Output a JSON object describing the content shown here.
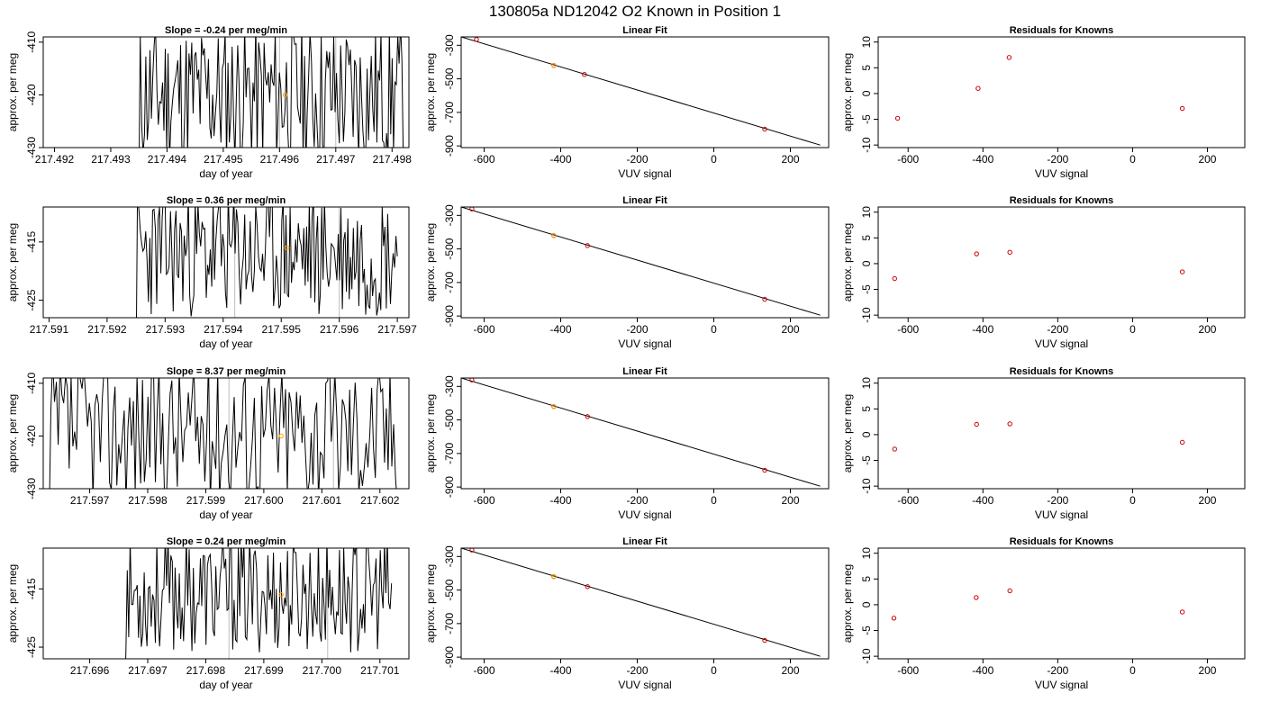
{
  "title": "130805a     ND12042   O2 Known in Position  1",
  "colors": {
    "trace": "#000000",
    "known_marker": "#ffa500",
    "points": "#cc0000",
    "fit_line": "#000000",
    "vline": "#bebebe"
  },
  "chart_data": [
    {
      "type": "line",
      "row": 0,
      "col": 0,
      "title": "Slope =  -0.24  per meg/min",
      "xlabel": "day of year",
      "ylabel": "approx. per meg",
      "xlim": [
        217.4918,
        217.4983
      ],
      "ylim": [
        -430,
        -409
      ],
      "xticks": [
        "217.492",
        "217.493",
        "217.494",
        "217.495",
        "217.496",
        "217.497",
        "217.498"
      ],
      "yticks": [
        "-410",
        "-420",
        "-430"
      ],
      "series": [
        {
          "x_start": 217.4935,
          "x_end": 217.4982,
          "amplitude": 14,
          "seed": 11,
          "baseline": -420
        }
      ],
      "vlines": [
        217.496,
        217.497
      ],
      "marker": {
        "x": 217.4961,
        "y": -420
      }
    },
    {
      "type": "scatter",
      "row": 0,
      "col": 1,
      "title": "Linear Fit",
      "xlabel": "VUV signal",
      "ylabel": "approx. per meg",
      "xlim": [
        -660,
        300
      ],
      "ylim": [
        -910,
        -250
      ],
      "xticks": [
        "-600",
        "-400",
        "-200",
        "0",
        "200"
      ],
      "yticks": [
        "-300",
        "-500",
        "-700",
        "-900"
      ],
      "points": [
        {
          "x": -620,
          "y": -265
        },
        {
          "x": -418,
          "y": -420
        },
        {
          "x": -338,
          "y": -474
        },
        {
          "x": 133,
          "y": -800
        }
      ],
      "fit": {
        "x": [
          -660,
          278
        ],
        "y": [
          -250,
          -895
        ]
      },
      "marker": {
        "x": -418,
        "y": -420
      }
    },
    {
      "type": "scatter",
      "row": 0,
      "col": 2,
      "title": "Residuals for Knowns",
      "xlabel": "VUV signal",
      "ylabel": "approx. per meg",
      "xlim": [
        -680,
        300
      ],
      "ylim": [
        -10.5,
        11
      ],
      "xticks": [
        "-600",
        "-400",
        "-200",
        "0",
        "200"
      ],
      "yticks": [
        "10",
        "5",
        "0",
        "-5",
        "-10"
      ],
      "points": [
        {
          "x": -628,
          "y": -4.8
        },
        {
          "x": -413,
          "y": 1.0
        },
        {
          "x": -330,
          "y": 7.0
        },
        {
          "x": 133,
          "y": -2.9
        }
      ]
    },
    {
      "type": "line",
      "row": 1,
      "col": 0,
      "title": "Slope =  0.36  per meg/min",
      "xlabel": "day of year",
      "ylabel": "approx. per meg",
      "xlim": [
        217.5909,
        217.5972
      ],
      "ylim": [
        -428,
        -409
      ],
      "xticks": [
        "217.591",
        "217.592",
        "217.593",
        "217.594",
        "217.595",
        "217.596",
        "217.597"
      ],
      "yticks": [
        "-415",
        "-425"
      ],
      "series": [
        {
          "x_start": 217.5925,
          "x_end": 217.597,
          "amplitude": 11,
          "seed": 23,
          "baseline": -417
        }
      ],
      "vlines": [
        217.5942,
        217.596
      ],
      "marker": {
        "x": 217.5951,
        "y": -416
      }
    },
    {
      "type": "scatter",
      "row": 1,
      "col": 1,
      "title": "Linear Fit",
      "xlabel": "VUV signal",
      "ylabel": "approx. per meg",
      "xlim": [
        -660,
        300
      ],
      "ylim": [
        -910,
        -250
      ],
      "xticks": [
        "-600",
        "-400",
        "-200",
        "0",
        "200"
      ],
      "yticks": [
        "-300",
        "-500",
        "-700",
        "-900"
      ],
      "points": [
        {
          "x": -632,
          "y": -262
        },
        {
          "x": -418,
          "y": -420
        },
        {
          "x": -330,
          "y": -480
        },
        {
          "x": 133,
          "y": -800
        }
      ],
      "fit": {
        "x": [
          -660,
          278
        ],
        "y": [
          -250,
          -895
        ]
      },
      "marker": {
        "x": -418,
        "y": -420
      }
    },
    {
      "type": "scatter",
      "row": 1,
      "col": 2,
      "title": "Residuals for Knowns",
      "xlabel": "VUV signal",
      "ylabel": "approx. per meg",
      "xlim": [
        -680,
        300
      ],
      "ylim": [
        -10.5,
        11
      ],
      "xticks": [
        "-600",
        "-400",
        "-200",
        "0",
        "200"
      ],
      "yticks": [
        "10",
        "5",
        "0",
        "-5",
        "-10"
      ],
      "points": [
        {
          "x": -636,
          "y": -2.9
        },
        {
          "x": -417,
          "y": 1.9
        },
        {
          "x": -328,
          "y": 2.2
        },
        {
          "x": 133,
          "y": -1.6
        }
      ]
    },
    {
      "type": "line",
      "row": 2,
      "col": 0,
      "title": "Slope =  8.37  per meg/min",
      "xlabel": "day of year",
      "ylabel": "approx. per meg",
      "xlim": [
        217.5962,
        217.6025
      ],
      "ylim": [
        -430,
        -409
      ],
      "xticks": [
        "217.597",
        "217.598",
        "217.599",
        "217.600",
        "217.601",
        "217.602"
      ],
      "yticks": [
        "-410",
        "-420",
        "-430"
      ],
      "series": [
        {
          "x_start": 217.5963,
          "x_end": 217.6023,
          "amplitude": 14,
          "seed": 37,
          "baseline": -419
        }
      ],
      "vlines": [
        217.5994,
        217.6012
      ],
      "marker": {
        "x": 217.6003,
        "y": -420
      }
    },
    {
      "type": "scatter",
      "row": 2,
      "col": 1,
      "title": "Linear Fit",
      "xlabel": "VUV signal",
      "ylabel": "approx. per meg",
      "xlim": [
        -660,
        300
      ],
      "ylim": [
        -910,
        -250
      ],
      "xticks": [
        "-600",
        "-400",
        "-200",
        "0",
        "200"
      ],
      "yticks": [
        "-300",
        "-500",
        "-700",
        "-900"
      ],
      "points": [
        {
          "x": -632,
          "y": -262
        },
        {
          "x": -418,
          "y": -420
        },
        {
          "x": -330,
          "y": -480
        },
        {
          "x": 133,
          "y": -800
        }
      ],
      "fit": {
        "x": [
          -660,
          278
        ],
        "y": [
          -250,
          -895
        ]
      },
      "marker": {
        "x": -418,
        "y": -420
      }
    },
    {
      "type": "scatter",
      "row": 2,
      "col": 2,
      "title": "Residuals for Knowns",
      "xlabel": "VUV signal",
      "ylabel": "approx. per meg",
      "xlim": [
        -680,
        300
      ],
      "ylim": [
        -10.5,
        11
      ],
      "xticks": [
        "-600",
        "-400",
        "-200",
        "0",
        "200"
      ],
      "yticks": [
        "10",
        "5",
        "0",
        "-5",
        "-10"
      ],
      "points": [
        {
          "x": -636,
          "y": -2.8
        },
        {
          "x": -417,
          "y": 2.0
        },
        {
          "x": -328,
          "y": 2.1
        },
        {
          "x": 133,
          "y": -1.5
        }
      ]
    },
    {
      "type": "line",
      "row": 3,
      "col": 0,
      "title": "Slope =  0.24  per meg/min",
      "xlabel": "day of year",
      "ylabel": "approx. per meg",
      "xlim": [
        217.6952,
        217.7015
      ],
      "ylim": [
        -427,
        -408
      ],
      "xticks": [
        "217.696",
        "217.697",
        "217.698",
        "217.699",
        "217.700",
        "217.701"
      ],
      "yticks": [
        "-415",
        "-425"
      ],
      "series": [
        {
          "x_start": 217.6966,
          "x_end": 217.7012,
          "amplitude": 10,
          "seed": 53,
          "baseline": -416
        }
      ],
      "vlines": [
        217.6984,
        217.7001
      ],
      "marker": {
        "x": 217.6993,
        "y": -416
      }
    },
    {
      "type": "scatter",
      "row": 3,
      "col": 1,
      "title": "Linear Fit",
      "xlabel": "VUV signal",
      "ylabel": "approx. per meg",
      "xlim": [
        -660,
        300
      ],
      "ylim": [
        -910,
        -250
      ],
      "xticks": [
        "-600",
        "-400",
        "-200",
        "0",
        "200"
      ],
      "yticks": [
        "-300",
        "-500",
        "-700",
        "-900"
      ],
      "points": [
        {
          "x": -632,
          "y": -262
        },
        {
          "x": -418,
          "y": -420
        },
        {
          "x": -330,
          "y": -480
        },
        {
          "x": 133,
          "y": -800
        }
      ],
      "fit": {
        "x": [
          -660,
          278
        ],
        "y": [
          -250,
          -895
        ]
      },
      "marker": {
        "x": -418,
        "y": -420
      }
    },
    {
      "type": "scatter",
      "row": 3,
      "col": 2,
      "title": "Residuals for Knowns",
      "xlabel": "VUV signal",
      "ylabel": "approx. per meg",
      "xlim": [
        -680,
        300
      ],
      "ylim": [
        -10.5,
        11
      ],
      "xticks": [
        "-600",
        "-400",
        "-200",
        "0",
        "200"
      ],
      "yticks": [
        "10",
        "5",
        "0",
        "-5",
        "-10"
      ],
      "points": [
        {
          "x": -638,
          "y": -2.6
        },
        {
          "x": -418,
          "y": 1.4
        },
        {
          "x": -328,
          "y": 2.7
        },
        {
          "x": 133,
          "y": -1.4
        }
      ]
    }
  ]
}
